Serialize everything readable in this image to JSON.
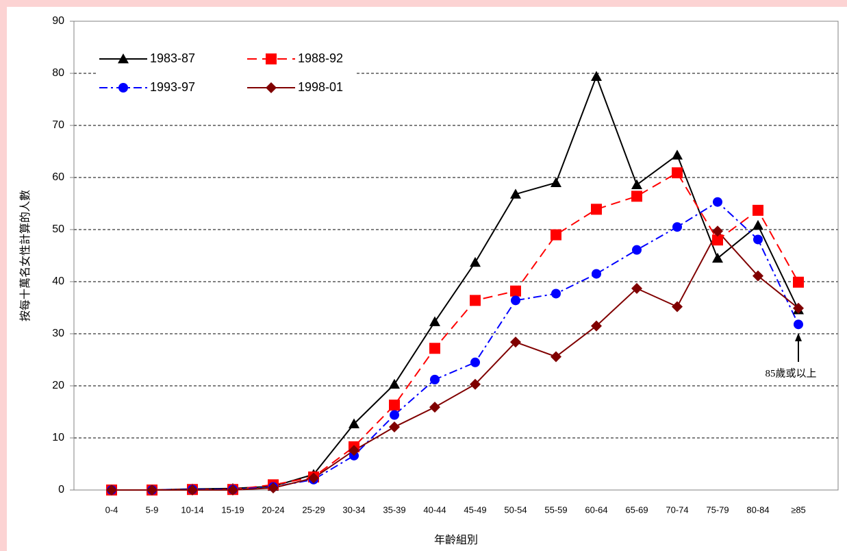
{
  "chart_data": {
    "type": "line",
    "y_label": "按每十萬名女性計算的人數",
    "x_label": "年齡組別",
    "categories": [
      "0-4",
      "5-9",
      "10-14",
      "15-19",
      "20-24",
      "25-29",
      "30-34",
      "35-39",
      "40-44",
      "45-49",
      "50-54",
      "55-59",
      "60-64",
      "65-69",
      "70-74",
      "75-79",
      "80-84",
      "≥85"
    ],
    "series": [
      {
        "name": "1983-87",
        "color": "#000000",
        "marker": "triangle",
        "dash": "solid",
        "values": [
          0,
          0,
          0.2,
          0.3,
          0.7,
          3.0,
          12.7,
          20.3,
          32.3,
          43.7,
          56.8,
          59.0,
          79.4,
          58.6,
          64.3,
          44.5,
          50.8,
          34.6
        ]
      },
      {
        "name": "1988-92",
        "color": "#ff0000",
        "marker": "square",
        "dash": "dashed",
        "values": [
          0,
          0,
          0.1,
          0.1,
          1.0,
          2.5,
          8.3,
          16.3,
          27.2,
          36.4,
          38.2,
          49.0,
          53.9,
          56.4,
          60.9,
          48.0,
          53.7,
          39.9
        ]
      },
      {
        "name": "1993-97",
        "color": "#0000ff",
        "marker": "circle",
        "dash": "dashdot",
        "values": [
          0,
          0,
          0.1,
          0.1,
          0.6,
          2.0,
          6.6,
          14.4,
          21.2,
          24.5,
          36.4,
          37.7,
          41.5,
          46.1,
          50.5,
          55.3,
          48.1,
          31.8
        ]
      },
      {
        "name": "1998-01",
        "color": "#800000",
        "marker": "diamond",
        "dash": "solid",
        "values": [
          0,
          0,
          0,
          0,
          0.4,
          2.3,
          7.6,
          12.1,
          15.9,
          20.3,
          28.4,
          25.6,
          31.5,
          38.7,
          35.2,
          49.7,
          41.1,
          34.9
        ]
      }
    ],
    "ylim": [
      0,
      90
    ],
    "yticks": [
      0,
      10,
      20,
      30,
      40,
      50,
      60,
      70,
      80,
      90
    ],
    "grid": true,
    "legend": "upper left",
    "annotation": "85歲或以上"
  }
}
